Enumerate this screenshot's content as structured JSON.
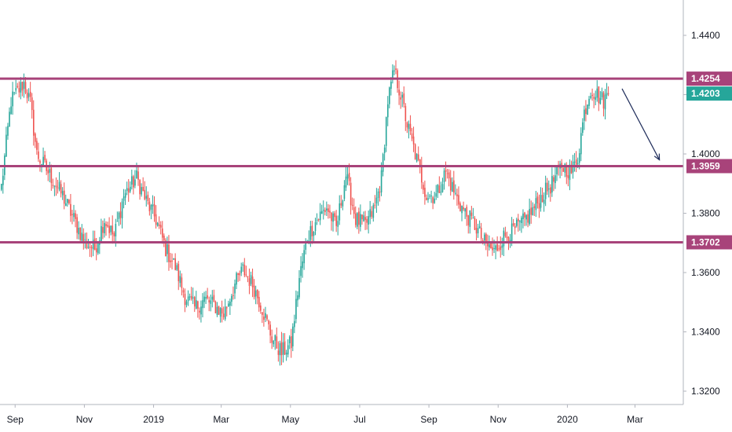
{
  "chart_data": {
    "type": "candlestick",
    "instrument_note": "",
    "y_axis": {
      "ticks": [
        1.44,
        1.42,
        1.4,
        1.38,
        1.36,
        1.34,
        1.32
      ],
      "tick_labels": [
        "1.4400",
        "1.4200",
        "1.4000",
        "1.3800",
        "1.3600",
        "1.3400",
        "1.3200"
      ],
      "ylim": [
        1.3135,
        1.4535
      ],
      "position": "right"
    },
    "x_axis": {
      "labels": [
        {
          "text": "Sep",
          "index": 5
        },
        {
          "text": "Nov",
          "index": 48
        },
        {
          "text": "2019",
          "index": 91
        },
        {
          "text": "Mar",
          "index": 133
        },
        {
          "text": "May",
          "index": 176
        },
        {
          "text": "Jul",
          "index": 219
        },
        {
          "text": "Sep",
          "index": 262
        },
        {
          "text": "Nov",
          "index": 305
        },
        {
          "text": "2020",
          "index": 348
        },
        {
          "text": "Mar",
          "index": 390
        }
      ],
      "total_slots": 420
    },
    "anchors": [
      [
        0,
        1.389
      ],
      [
        6,
        1.418
      ],
      [
        14,
        1.424
      ],
      [
        18,
        1.417
      ],
      [
        22,
        1.4
      ],
      [
        30,
        1.393
      ],
      [
        38,
        1.386
      ],
      [
        45,
        1.378
      ],
      [
        52,
        1.37
      ],
      [
        58,
        1.368
      ],
      [
        64,
        1.378
      ],
      [
        70,
        1.372
      ],
      [
        76,
        1.386
      ],
      [
        84,
        1.392
      ],
      [
        90,
        1.384
      ],
      [
        96,
        1.378
      ],
      [
        102,
        1.368
      ],
      [
        108,
        1.362
      ],
      [
        114,
        1.352
      ],
      [
        120,
        1.348
      ],
      [
        126,
        1.351
      ],
      [
        132,
        1.349
      ],
      [
        138,
        1.346
      ],
      [
        145,
        1.356
      ],
      [
        150,
        1.361
      ],
      [
        156,
        1.356
      ],
      [
        162,
        1.348
      ],
      [
        168,
        1.338
      ],
      [
        174,
        1.333
      ],
      [
        180,
        1.336
      ],
      [
        185,
        1.358
      ],
      [
        190,
        1.372
      ],
      [
        196,
        1.378
      ],
      [
        202,
        1.382
      ],
      [
        208,
        1.375
      ],
      [
        214,
        1.393
      ],
      [
        220,
        1.378
      ],
      [
        226,
        1.376
      ],
      [
        232,
        1.382
      ],
      [
        236,
        1.392
      ],
      [
        240,
        1.418
      ],
      [
        244,
        1.428
      ],
      [
        248,
        1.42
      ],
      [
        252,
        1.41
      ],
      [
        258,
        1.398
      ],
      [
        264,
        1.386
      ],
      [
        270,
        1.386
      ],
      [
        276,
        1.394
      ],
      [
        282,
        1.386
      ],
      [
        288,
        1.38
      ],
      [
        294,
        1.376
      ],
      [
        300,
        1.37
      ],
      [
        306,
        1.367
      ],
      [
        312,
        1.372
      ],
      [
        318,
        1.374
      ],
      [
        324,
        1.377
      ],
      [
        330,
        1.381
      ],
      [
        336,
        1.386
      ],
      [
        342,
        1.39
      ],
      [
        348,
        1.396
      ],
      [
        354,
        1.394
      ],
      [
        358,
        1.399
      ],
      [
        362,
        1.414
      ],
      [
        366,
        1.422
      ],
      [
        370,
        1.42
      ],
      [
        374,
        1.418
      ],
      [
        377,
        1.4203
      ]
    ],
    "series": [
      {
        "type": "candles",
        "up_color": "#26a69a",
        "down_color": "#ef5350"
      }
    ],
    "horizontal_levels": [
      {
        "value": 1.4254,
        "label": "1.4254",
        "color": "#a8437a"
      },
      {
        "value": 1.3959,
        "label": "1.3959",
        "color": "#a8437a"
      },
      {
        "value": 1.3702,
        "label": "1.3702",
        "color": "#a8437a"
      }
    ],
    "last_price": {
      "value": 1.4203,
      "label": "1.4203",
      "color": "#26a69a"
    },
    "annotation_arrow": {
      "from": {
        "index": 380,
        "price": 1.422
      },
      "to": {
        "index": 392,
        "price": 1.398
      },
      "color": "#1e2c5a"
    },
    "grid": false,
    "legend": "none"
  }
}
